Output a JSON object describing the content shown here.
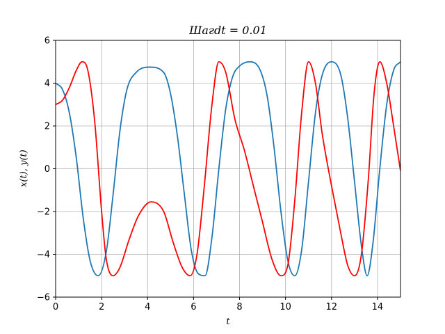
{
  "chart_data": {
    "type": "line",
    "title": "Шагdt = 0.01",
    "xlabel": "t",
    "ylabel": "x(t), y(t)",
    "xlim": [
      0,
      15
    ],
    "ylim": [
      -6,
      6
    ],
    "xticks": [
      0,
      2,
      4,
      6,
      8,
      10,
      12,
      14
    ],
    "yticks": [
      -6,
      -4,
      -2,
      0,
      2,
      4,
      6
    ],
    "grid": true,
    "series": [
      {
        "color": "#1f77b4",
        "x": [
          0,
          0.3,
          0.6,
          0.9,
          1.2,
          1.5,
          1.85,
          2.2,
          2.5,
          2.8,
          3.1,
          3.5,
          4.1,
          4.7,
          5.0,
          5.3,
          5.6,
          5.9,
          6.2,
          6.5,
          6.8,
          7.1,
          7.4,
          7.7,
          8.0,
          8.45,
          8.9,
          9.2,
          9.5,
          9.8,
          10.1,
          10.4,
          10.7,
          11.0,
          11.3,
          11.6,
          12.0,
          12.4,
          12.7,
          13.0,
          13.3,
          13.55,
          13.8,
          14.1,
          14.4,
          14.7,
          15.0
        ],
        "y": [
          4.0,
          3.7,
          2.6,
          0.5,
          -2.3,
          -4.3,
          -5.0,
          -3.9,
          -1.2,
          1.8,
          3.7,
          4.5,
          4.75,
          4.5,
          3.5,
          1.5,
          -1.2,
          -3.8,
          -4.9,
          -5.0,
          -3.2,
          0.0,
          2.8,
          4.3,
          4.8,
          5.0,
          4.6,
          3.4,
          1.0,
          -2.0,
          -4.3,
          -5.0,
          -3.8,
          -0.6,
          2.6,
          4.4,
          5.0,
          4.4,
          2.4,
          -0.6,
          -3.6,
          -5.0,
          -3.5,
          0.0,
          3.0,
          4.6,
          5.0
        ]
      },
      {
        "color": "#ff0000",
        "x": [
          0,
          0.3,
          0.6,
          0.9,
          1.15,
          1.4,
          1.7,
          2.0,
          2.2,
          2.5,
          2.8,
          3.2,
          3.6,
          4.15,
          4.7,
          5.1,
          5.5,
          5.85,
          6.15,
          6.45,
          6.8,
          7.1,
          7.4,
          7.8,
          8.2,
          8.6,
          9.0,
          9.4,
          9.8,
          10.1,
          10.4,
          10.7,
          11.0,
          11.3,
          11.6,
          12.0,
          12.4,
          12.7,
          13.0,
          13.3,
          13.6,
          13.85,
          14.1,
          14.4,
          14.7,
          15.0
        ],
        "y": [
          3.0,
          3.2,
          3.8,
          4.6,
          5.0,
          4.6,
          2.2,
          -2.0,
          -4.2,
          -5.0,
          -4.6,
          -3.3,
          -2.2,
          -1.55,
          -2.0,
          -3.4,
          -4.6,
          -5.0,
          -4.0,
          -1.0,
          3.0,
          5.0,
          4.5,
          2.3,
          0.9,
          -0.8,
          -2.5,
          -4.2,
          -5.0,
          -4.5,
          -1.5,
          2.6,
          5.0,
          4.0,
          1.6,
          -0.8,
          -3.0,
          -4.5,
          -5.0,
          -4.0,
          -0.5,
          3.5,
          5.0,
          4.0,
          2.0,
          -0.1
        ]
      }
    ]
  }
}
